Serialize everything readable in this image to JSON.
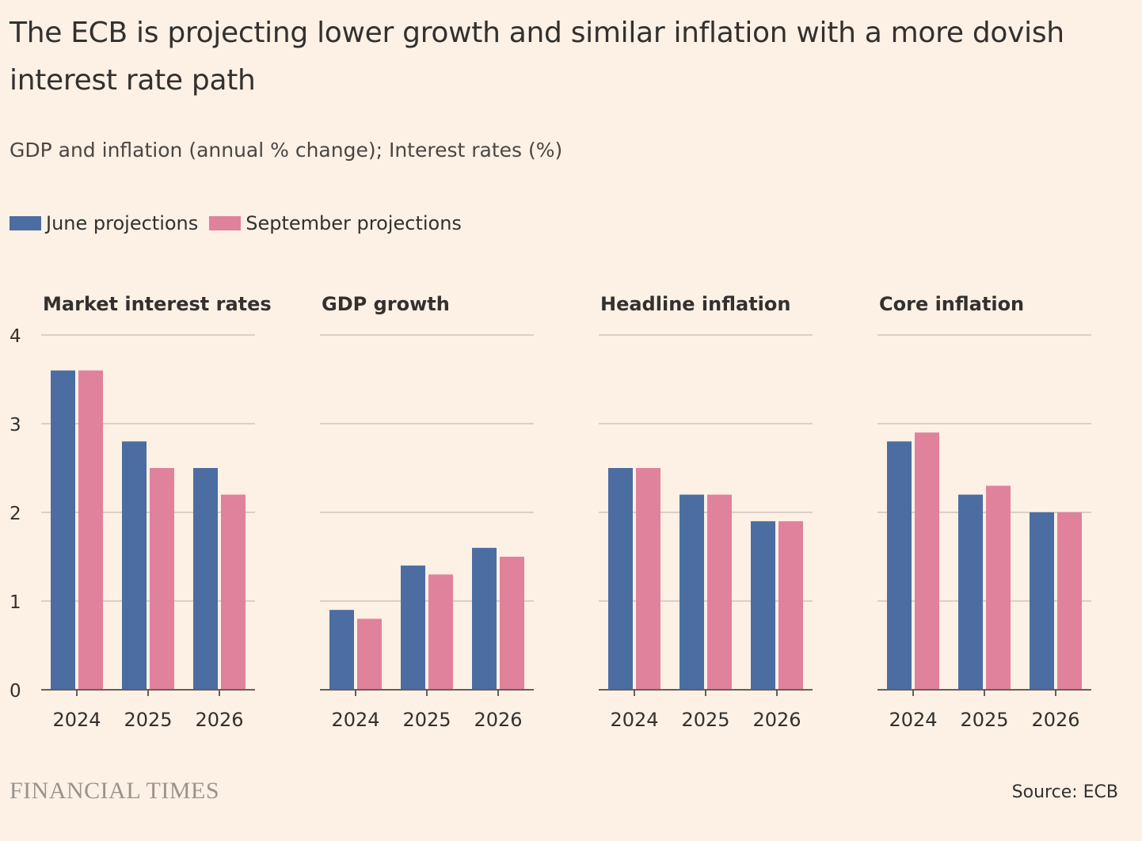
{
  "header": {
    "title": "The ECB is projecting lower growth and similar inflation with a more dovish interest rate path",
    "subtitle": "GDP and inflation (annual % change); Interest rates (%)"
  },
  "legend": {
    "items": [
      {
        "label": "June projections",
        "color": "#4B6DA1"
      },
      {
        "label": "September projections",
        "color": "#E0829C"
      }
    ]
  },
  "chart_data": {
    "type": "bar",
    "ylim": [
      0,
      4
    ],
    "yticks": [
      0,
      1,
      2,
      3,
      4
    ],
    "grid": true,
    "legend_position": "top-left",
    "categories": [
      "2024",
      "2025",
      "2026"
    ],
    "series_colors": {
      "June projections": "#4B6DA1",
      "September projections": "#E0829C"
    },
    "panels": [
      {
        "title": "Market interest rates",
        "series": [
          {
            "name": "June projections",
            "values": [
              3.6,
              2.8,
              2.5
            ]
          },
          {
            "name": "September projections",
            "values": [
              3.6,
              2.5,
              2.2
            ]
          }
        ]
      },
      {
        "title": "GDP growth",
        "series": [
          {
            "name": "June projections",
            "values": [
              0.9,
              1.4,
              1.6
            ]
          },
          {
            "name": "September projections",
            "values": [
              0.8,
              1.3,
              1.5
            ]
          }
        ]
      },
      {
        "title": "Headline inflation",
        "series": [
          {
            "name": "June projections",
            "values": [
              2.5,
              2.2,
              1.9
            ]
          },
          {
            "name": "September projections",
            "values": [
              2.5,
              2.2,
              1.9
            ]
          }
        ]
      },
      {
        "title": "Core inflation",
        "series": [
          {
            "name": "June projections",
            "values": [
              2.8,
              2.2,
              2.0
            ]
          },
          {
            "name": "September projections",
            "values": [
              2.9,
              2.3,
              2.0
            ]
          }
        ]
      }
    ]
  },
  "footer": {
    "brand": "FINANCIAL TIMES",
    "source": "Source: ECB"
  }
}
